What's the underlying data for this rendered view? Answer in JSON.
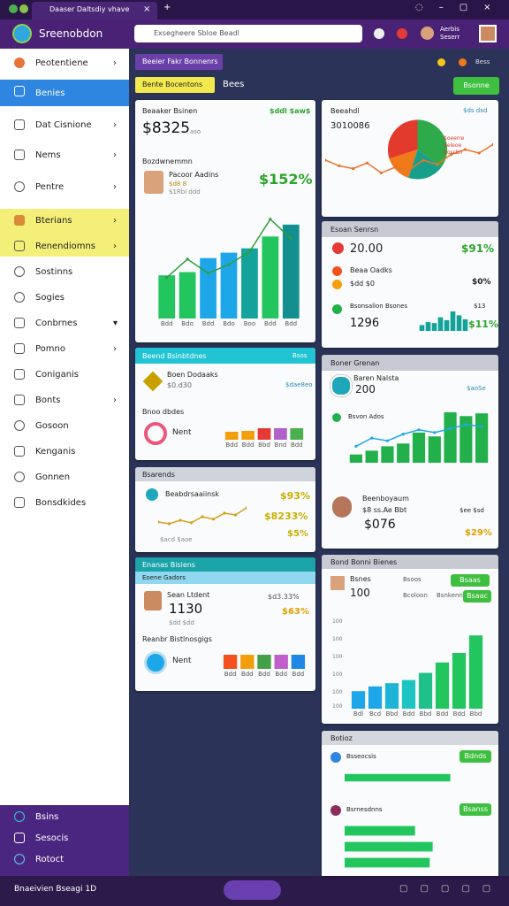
{
  "browser": {
    "tab": "Daaser Daltsdiy vhave"
  },
  "header": {
    "title": "Sreenobdon",
    "search": "Exsegheere Sbloe Beadl",
    "user": [
      "Aerbis",
      "Seserr"
    ]
  },
  "sidebar": {
    "items": [
      "Peotentiene",
      "Benies",
      "Dat Cisnione",
      "Nems",
      "Pentre",
      "Bterians",
      "Renendiomns",
      "Sostinns",
      "Sogies",
      "Conbrnes",
      "Pomno",
      "Coniganis",
      "Bonts",
      "Gosoon",
      "Kenganis",
      "Gonnen",
      "Bonsdkides"
    ],
    "bottom": [
      "Bsins",
      "Sesocis",
      "Rotoct"
    ]
  },
  "toolbar": {
    "chip": "Beeier Fakr Bonnenrs",
    "filter": "Bente Bocentons",
    "label": "Bees",
    "button": "Bsonne",
    "status": "Bess"
  },
  "cards": {
    "revenue": {
      "title": "Beaaker Bsinen",
      "tag": "$ddl $aw$",
      "value": "$8325",
      "sub": "aso",
      "section": "Bozdwnemmn",
      "person": "Pacoor Aadins",
      "meta": [
        "$d8 8",
        "$1Rbl ddd"
      ],
      "change": "$152%",
      "categories": [
        "Bdd",
        "Bdo",
        "Bdd",
        "Bdo",
        "Boo",
        "Bdd",
        "Bdd"
      ],
      "bars": [
        40,
        43,
        56,
        61,
        65,
        76,
        87
      ],
      "colors": [
        "#22c55e",
        "#22c55e",
        "#1ea7e8",
        "#1ea7e8",
        "#13a39a",
        "#22c55e",
        "#138f8f"
      ],
      "line": [
        38,
        55,
        42,
        50,
        62,
        92,
        74
      ],
      "lineColor": "#2e9e3a"
    },
    "orders": {
      "title": "Beend Bsinbtdnes",
      "tag": "Bsos",
      "item": "Boen Dodaaks",
      "itemValue": "$0.d30",
      "itemTag": "$dae8eo",
      "section": "Bnoo dbdes",
      "legend": "Nent",
      "categories": [
        "Bdd",
        "Bdd",
        "Bbd",
        "Bnd",
        "Bdd"
      ],
      "bars": [
        45,
        50,
        65,
        65,
        65
      ],
      "colors": [
        "#f59e0b",
        "#f59e0b",
        "#e53935",
        "#b062c9",
        "#4caf50"
      ]
    },
    "trend": {
      "title": "Bsarends",
      "label": "Beabdrsaaiinsk",
      "axis": "$acd $aoe",
      "changes": [
        "$93%",
        "$8233%",
        "$5%"
      ],
      "line": [
        40,
        35,
        45,
        38,
        55,
        48,
        65,
        60,
        80
      ],
      "lineColor": "#d4a017"
    },
    "sales": {
      "title": "Enanas Bislens",
      "sub": "Eoene Gadors",
      "person": "Sean Ltdent",
      "value": "1130",
      "meta": "$dd $dd",
      "changes": [
        "$d3.33%",
        "$63%"
      ],
      "section": "Reanbr Bistlnosgigs",
      "legend": "Nent",
      "categories": [
        "Bdd",
        "Bdd",
        "Bdd",
        "Bdd",
        "Bdd"
      ],
      "bars": [
        80,
        80,
        80,
        80,
        80
      ],
      "colors": [
        "#f4511e",
        "#f59e0b",
        "#43a047",
        "#c05fc9",
        "#1e88e5"
      ]
    },
    "overview": {
      "title": "Beeahdl",
      "tag": "$ds dsd",
      "value": "3010086",
      "legend": [
        "$oeerre",
        "$eleoe",
        "$oscbn"
      ],
      "pie": [
        35,
        20,
        15,
        30
      ],
      "colors": [
        "#2eaa4a",
        "#16a08a",
        "#f07a1a",
        "#e23b2e"
      ],
      "line": [
        40,
        32,
        28,
        36,
        22,
        30,
        26,
        40,
        34,
        48,
        55,
        50,
        62
      ],
      "lineColor": "#e8742a"
    },
    "stats": {
      "title": "Esoan Senrsn",
      "stat": "20.00",
      "statChange": "$91%",
      "item": "Beaa Oadks",
      "itemValue": "$dd $0",
      "itemChange": "$0%",
      "section": "Bsonsalion Bsones",
      "sectionTag": "$13",
      "value": "1296",
      "change": "$11%",
      "bars": [
        30,
        45,
        40,
        70,
        55,
        100,
        80,
        60
      ],
      "colors": [
        "#13a39a"
      ]
    },
    "growth": {
      "title": "Boner Grenan",
      "name": "Baren Nalsta",
      "value": "200",
      "tag": "$aoSe",
      "legend": "Bsvon Ados",
      "bars": [
        15,
        22,
        30,
        35,
        55,
        48,
        92,
        85,
        90
      ],
      "colors": [
        "#22b04a"
      ],
      "line": [
        30,
        45,
        40,
        52,
        60,
        55,
        62,
        70,
        66
      ],
      "lineColor": "#1ea7e8",
      "person": "Beenboyaum",
      "meta": "$8 ss.Ae Bbt",
      "value2": "$076",
      "changes": [
        "$ee $sd",
        "$29%"
      ]
    },
    "report": {
      "title": "Bond Bonni Bienes",
      "name": "Bsnes",
      "value": "100",
      "legend": [
        "Bsoos",
        "Bcoloon",
        "Bsnkenn"
      ],
      "buttons": [
        "Bsaas",
        "Bsaac"
      ],
      "axis": [
        "100",
        "100",
        "100",
        "100",
        "100",
        "100"
      ],
      "categories": [
        "Bdl",
        "Bcd",
        "Bbd",
        "Bdd",
        "Bbd",
        "Bdd",
        "Bdd",
        "Bbd"
      ],
      "bars": [
        22,
        28,
        32,
        36,
        45,
        58,
        70,
        92
      ],
      "colors": [
        "#1ea7e8",
        "#1ea7e8",
        "#1eb4d8",
        "#1dc4c4",
        "#20c08a",
        "#22c55e",
        "#22c55e",
        "#22c55e"
      ]
    },
    "tasks": {
      "title": "Botioz",
      "rows": [
        {
          "label": "Bsseocsis",
          "button": "Bdnds",
          "hbars": [
            72
          ],
          "colors": [
            "#22c55e"
          ]
        },
        {
          "label": "Bsrnesdnns",
          "button": "Bsanss",
          "hbars": [
            48,
            60,
            58
          ],
          "colors": [
            "#22c55e"
          ]
        }
      ]
    }
  },
  "footer": {
    "text": "Bnaeivien Bseagi 1D"
  }
}
